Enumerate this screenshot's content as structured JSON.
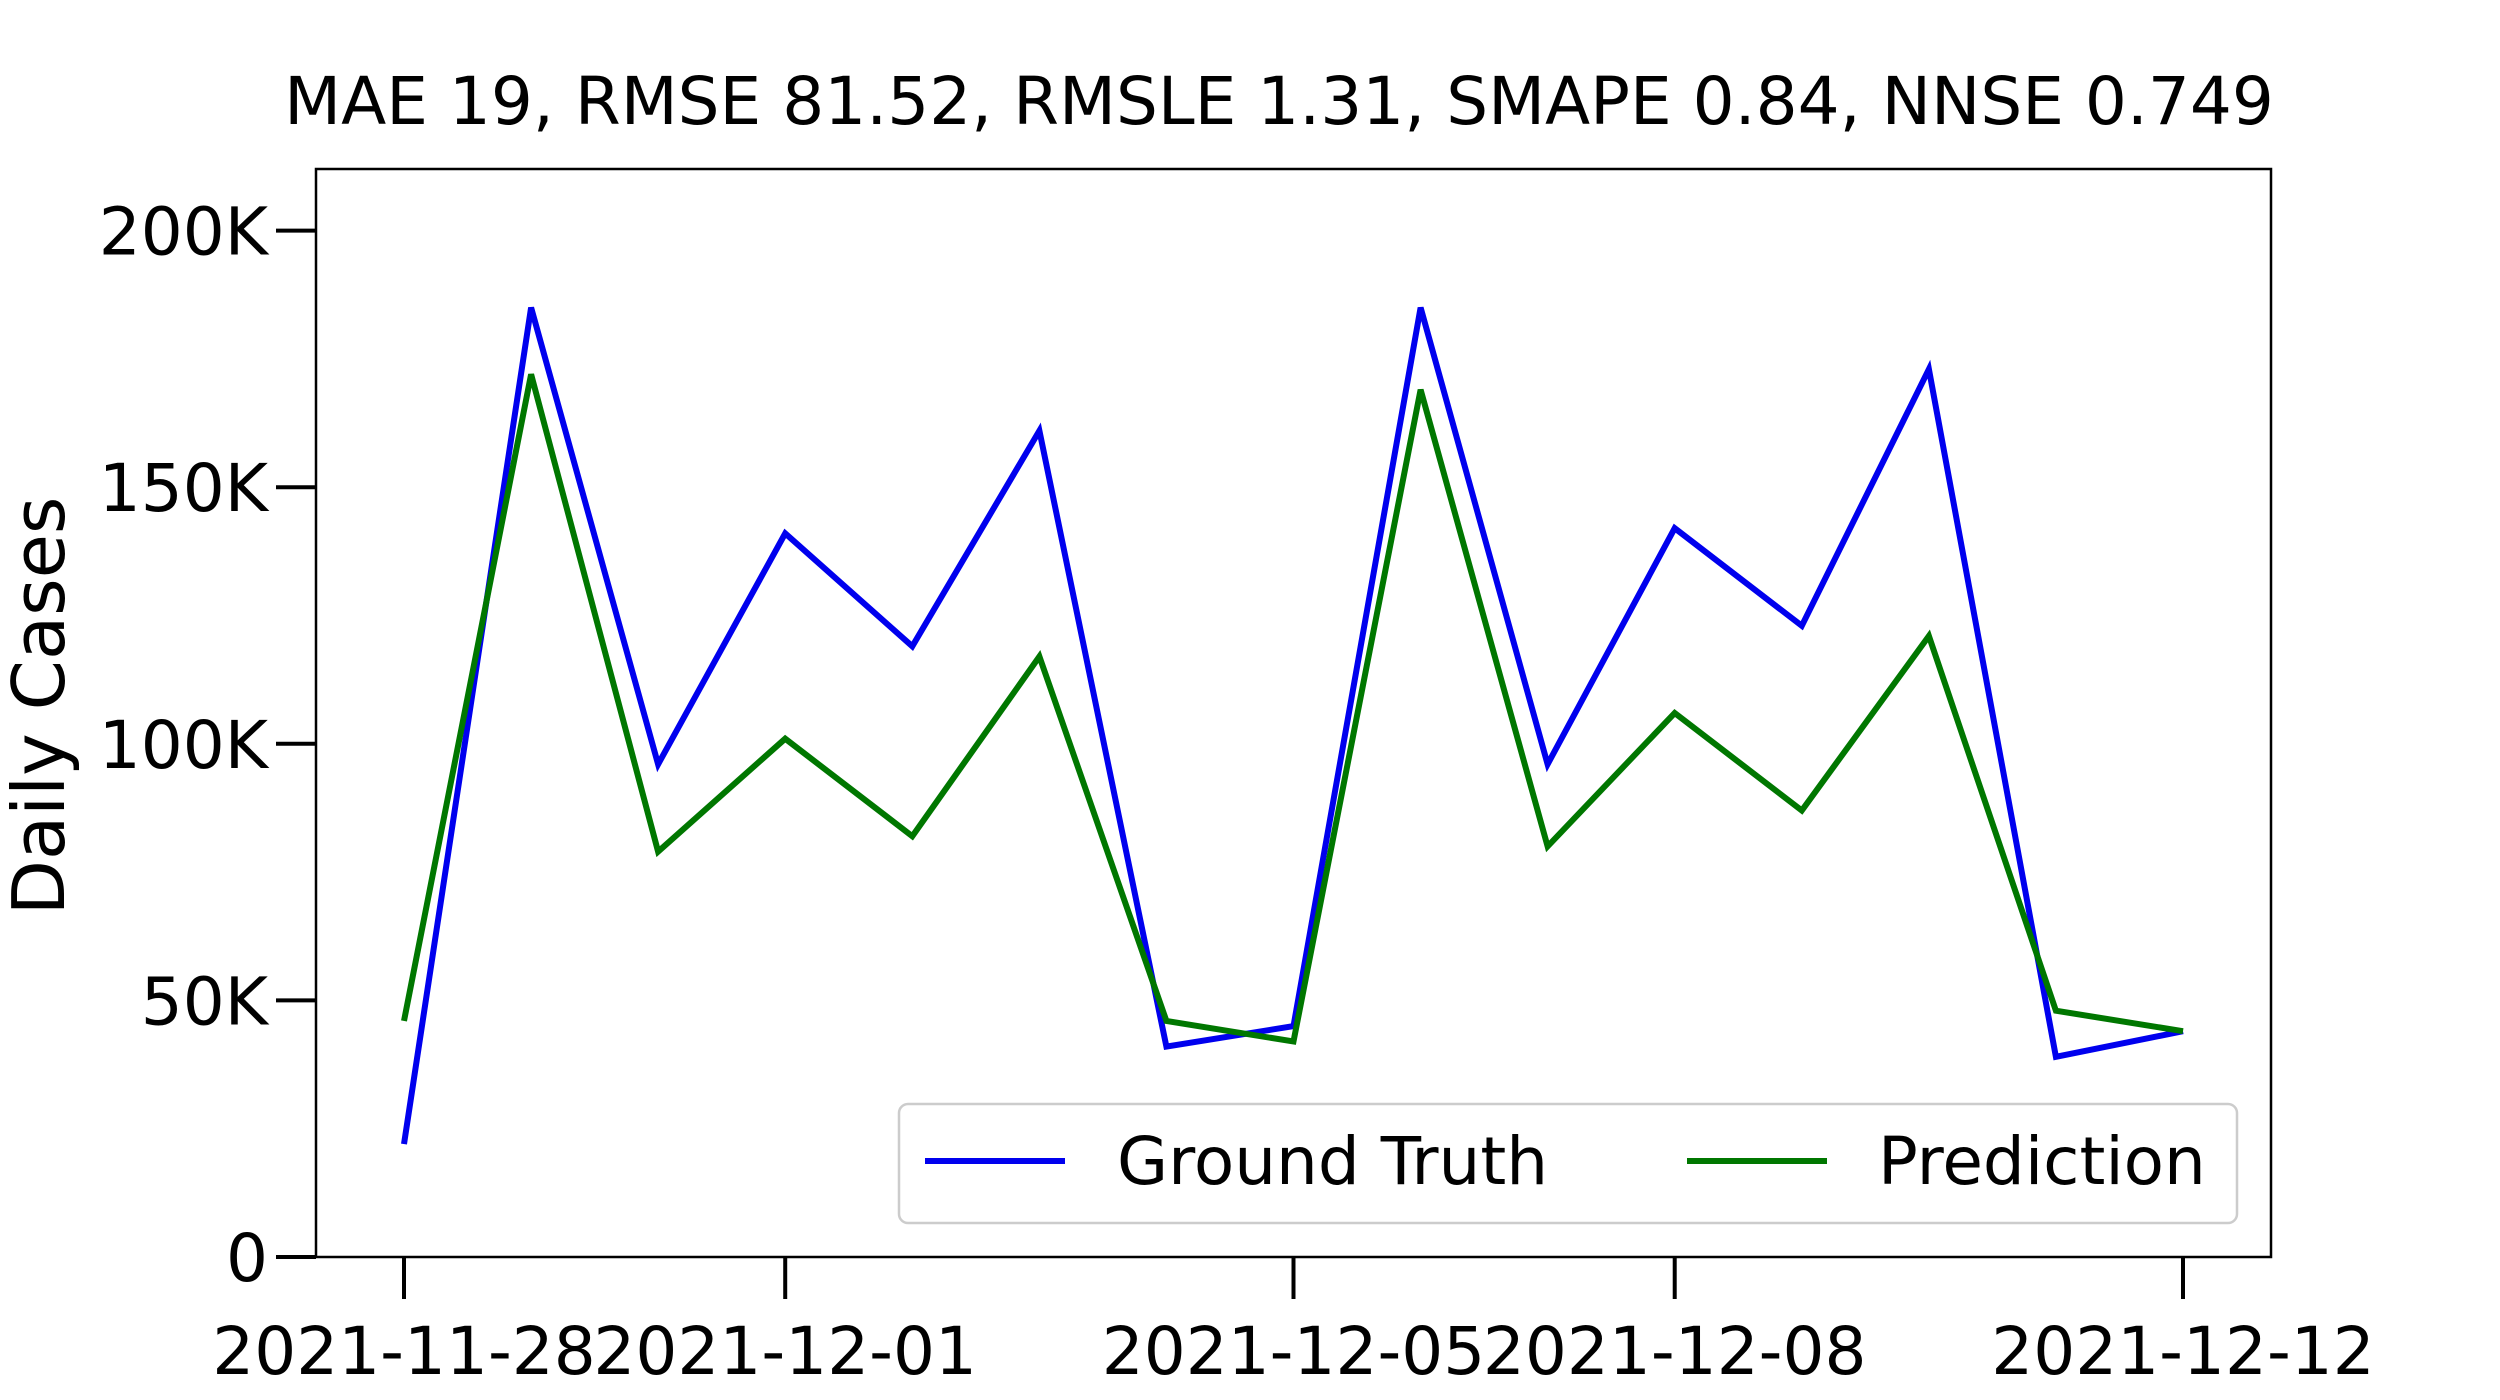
{
  "chart_data": {
    "type": "line",
    "title": "MAE 19, RMSE 81.52, RMSLE 1.31, SMAPE 0.84, NNSE 0.749",
    "xlabel": "",
    "ylabel": "Daily Cases",
    "ylim": [
      0,
      212000
    ],
    "yticks": [
      0,
      50000,
      100000,
      150000,
      200000
    ],
    "ytick_labels": [
      "0",
      "50K",
      "100K",
      "150K",
      "200K"
    ],
    "xticks": [
      "2021-11-28",
      "2021-12-01",
      "2021-12-05",
      "2021-12-08",
      "2021-12-12"
    ],
    "x": [
      "2021-11-28",
      "2021-11-29",
      "2021-11-30",
      "2021-12-01",
      "2021-12-02",
      "2021-12-03",
      "2021-12-04",
      "2021-12-05",
      "2021-12-06",
      "2021-12-07",
      "2021-12-08",
      "2021-12-09",
      "2021-12-10",
      "2021-12-11",
      "2021-12-12"
    ],
    "series": [
      {
        "name": "Ground Truth",
        "color": "#0000ee",
        "values": [
          22000,
          185000,
          96000,
          141000,
          119000,
          161000,
          41000,
          45000,
          185000,
          96000,
          142000,
          123000,
          173000,
          39000,
          44000
        ]
      },
      {
        "name": "Prediction",
        "color": "#007700",
        "values": [
          46000,
          172000,
          79000,
          101000,
          82000,
          117000,
          46000,
          42000,
          169000,
          80000,
          106000,
          87000,
          121000,
          48000,
          44000
        ]
      }
    ],
    "grid": false,
    "legend": "lower-right"
  }
}
